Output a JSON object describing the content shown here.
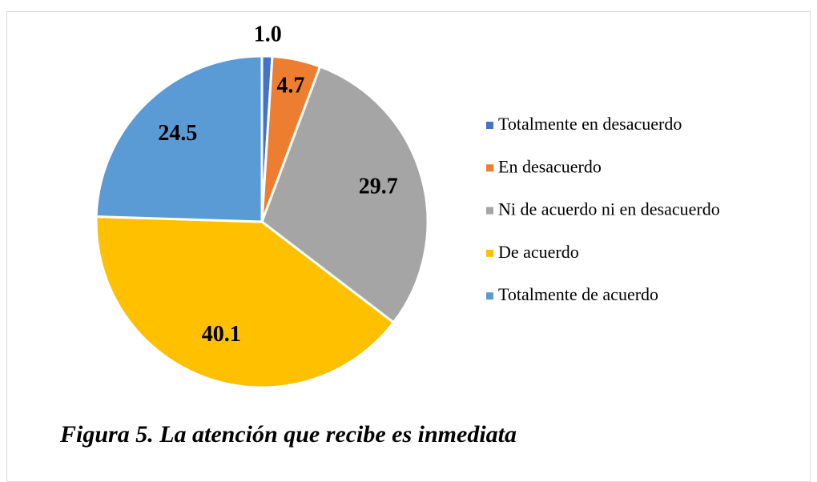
{
  "chart_data": {
    "type": "pie",
    "categories": [
      "Totalmente en desacuerdo",
      "En desacuerdo",
      "Ni de acuerdo ni en desacuerdo",
      "De acuerdo",
      "Totalmente de acuerdo"
    ],
    "values": [
      1.0,
      4.7,
      29.7,
      40.1,
      24.5
    ],
    "value_labels": [
      "1.0",
      "4.7",
      "29.7",
      "40.1",
      "24.5"
    ],
    "colors": [
      "#4472c4",
      "#ed7d31",
      "#a5a5a5",
      "#ffc000",
      "#5b9bd5"
    ],
    "legend": "right",
    "caption": "Figura 5. La atención que recibe es inmediata"
  }
}
